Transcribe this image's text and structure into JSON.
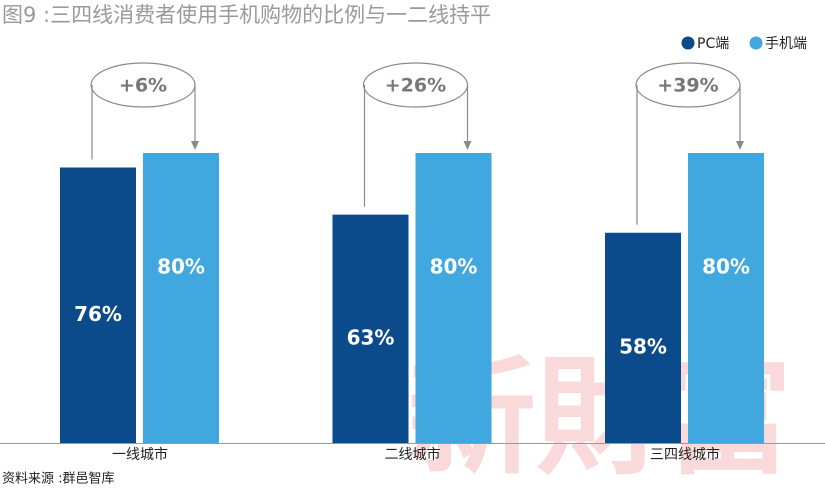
{
  "chart_data": {
    "type": "bar",
    "title": "图9 :三四线消费者使用手机购物的比例与一二线持平",
    "categories": [
      "一线城市",
      "二线城市",
      "三四线城市"
    ],
    "series": [
      {
        "name": "PC端",
        "color": "#0b4a8b",
        "values": [
          76,
          63,
          58
        ],
        "value_labels": [
          "76%",
          "63%",
          "58%"
        ]
      },
      {
        "name": "手机端",
        "color": "#41a7df",
        "values": [
          80,
          80,
          80
        ],
        "value_labels": [
          "80%",
          "80%",
          "80%"
        ]
      }
    ],
    "annotations": [
      "+6%",
      "+26%",
      "+39%"
    ],
    "source": "资料来源 :群邑智库",
    "watermark": "新財富"
  }
}
